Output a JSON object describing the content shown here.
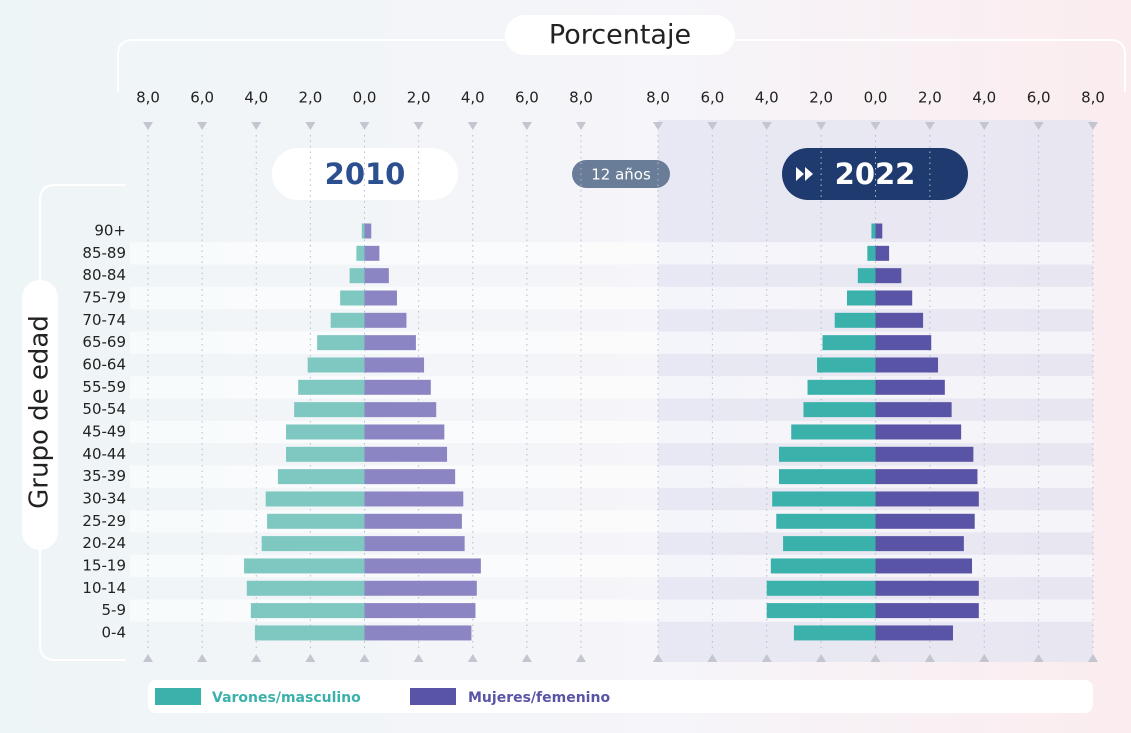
{
  "chart_data": {
    "type": "pyramid",
    "x_label": "Porcentaje",
    "y_label": "Grupo de edad",
    "interval_label": "12 años",
    "categories": [
      "90+",
      "85-89",
      "80-84",
      "75-79",
      "70-74",
      "65-69",
      "60-64",
      "55-59",
      "50-54",
      "45-49",
      "40-44",
      "35-39",
      "30-34",
      "25-29",
      "20-24",
      "15-19",
      "10-14",
      "5-9",
      "0-4"
    ],
    "xlim": [
      -8,
      8
    ],
    "xticks": [
      {
        "value": -8,
        "label": "8,0"
      },
      {
        "value": -6,
        "label": "6,0"
      },
      {
        "value": -4,
        "label": "4,0"
      },
      {
        "value": -2,
        "label": "2,0"
      },
      {
        "value": 0,
        "label": "0,0"
      },
      {
        "value": 2,
        "label": "2,0"
      },
      {
        "value": 4,
        "label": "4,0"
      },
      {
        "value": 6,
        "label": "6,0"
      },
      {
        "value": 8,
        "label": "8,0"
      }
    ],
    "grid": true,
    "series": [
      {
        "name": "Varones/masculino",
        "color": "#3bb1ab"
      },
      {
        "name": "Mujeres/femenino",
        "color": "#5a54a6"
      }
    ],
    "panels": [
      {
        "title": "2010",
        "series": [
          {
            "color": "#7fc7c1",
            "values": [
              0.1,
              0.3,
              0.55,
              0.9,
              1.25,
              1.75,
              2.1,
              2.45,
              2.6,
              2.9,
              2.9,
              3.2,
              3.65,
              3.6,
              3.8,
              4.45,
              4.35,
              4.2,
              4.05
            ]
          },
          {
            "color": "#8b86c3",
            "values": [
              0.25,
              0.55,
              0.9,
              1.2,
              1.55,
              1.9,
              2.2,
              2.45,
              2.65,
              2.95,
              3.05,
              3.35,
              3.65,
              3.6,
              3.7,
              4.3,
              4.15,
              4.1,
              3.95
            ]
          }
        ]
      },
      {
        "title": "2022",
        "series": [
          {
            "color": "#3bb1ab",
            "values": [
              0.15,
              0.3,
              0.65,
              1.05,
              1.5,
              1.95,
              2.15,
              2.5,
              2.65,
              3.1,
              3.55,
              3.55,
              3.8,
              3.65,
              3.4,
              3.85,
              4.0,
              4.0,
              3.0
            ]
          },
          {
            "color": "#5a54a6",
            "values": [
              0.25,
              0.5,
              0.95,
              1.35,
              1.75,
              2.05,
              2.3,
              2.55,
              2.8,
              3.15,
              3.6,
              3.75,
              3.8,
              3.65,
              3.25,
              3.55,
              3.8,
              3.8,
              2.85
            ]
          }
        ]
      }
    ]
  }
}
